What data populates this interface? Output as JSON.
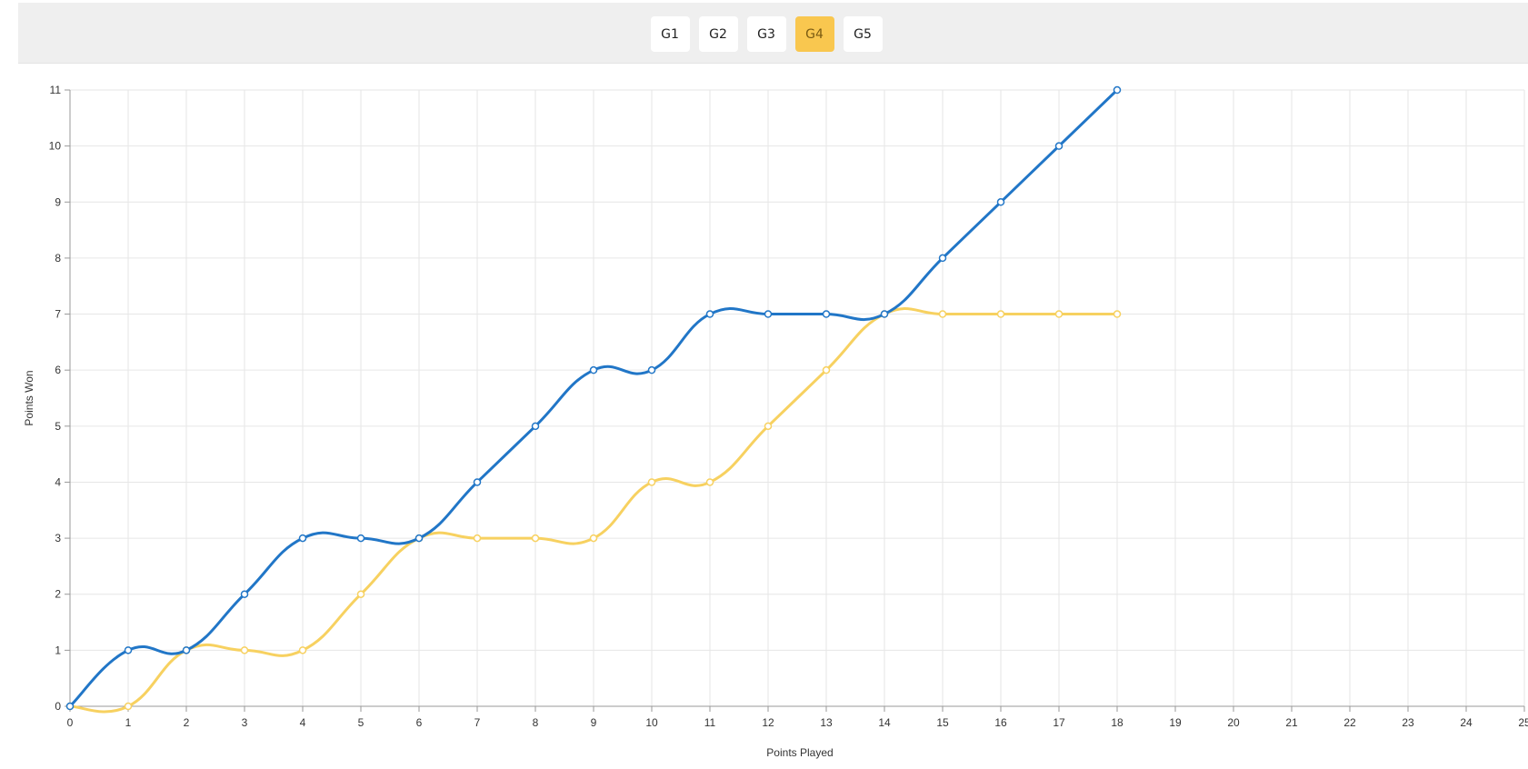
{
  "header": {
    "tabs": [
      {
        "label": "G1",
        "active": false
      },
      {
        "label": "G2",
        "active": false
      },
      {
        "label": "G3",
        "active": false
      },
      {
        "label": "G4",
        "active": true
      },
      {
        "label": "G5",
        "active": false
      }
    ],
    "active_color": "#f9c74f"
  },
  "chart_data": {
    "type": "line",
    "title": "",
    "xlabel": "Points Played",
    "ylabel": "Points Won",
    "xlim": [
      0,
      25
    ],
    "ylim": [
      0,
      11
    ],
    "x_ticks": [
      "0",
      "1",
      "2",
      "3",
      "4",
      "5",
      "6",
      "7",
      "8",
      "9",
      "10",
      "11",
      "12",
      "13",
      "14",
      "15",
      "16",
      "17",
      "18",
      "19",
      "20",
      "21",
      "22",
      "23",
      "24",
      "25"
    ],
    "y_ticks": [
      "0",
      "1",
      "2",
      "3",
      "4",
      "5",
      "6",
      "7",
      "8",
      "9",
      "10",
      "11"
    ],
    "grid": true,
    "legend": "none",
    "x": [
      0,
      1,
      2,
      3,
      4,
      5,
      6,
      7,
      8,
      9,
      10,
      11,
      12,
      13,
      14,
      15,
      16,
      17,
      18
    ],
    "series": [
      {
        "color": "#2176c7",
        "values": [
          0,
          1,
          1,
          2,
          3,
          3,
          3,
          4,
          5,
          6,
          6,
          7,
          7,
          7,
          7,
          8,
          9,
          10,
          11
        ]
      },
      {
        "color": "#f7d160",
        "values": [
          0,
          0,
          1,
          1,
          1,
          2,
          3,
          3,
          3,
          3,
          4,
          4,
          5,
          6,
          7,
          7,
          7,
          7,
          7
        ]
      }
    ]
  }
}
